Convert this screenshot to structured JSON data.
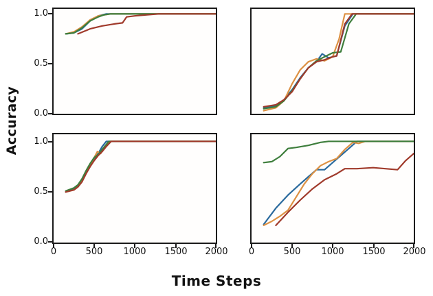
{
  "figure": {
    "ylabel": "Accuracy",
    "xlabel": "Time Steps",
    "y_ticks": [
      "1.0",
      "0.5",
      "0.0"
    ],
    "x_ticks": [
      "0",
      "500",
      "1000",
      "1500",
      "2000"
    ]
  },
  "palette": {
    "blue": "#2a6a9d",
    "orange": "#dd9143",
    "green": "#3e7e3c",
    "red": "#a03a2b",
    "spine": "#1a1a1a"
  },
  "chart_data": [
    {
      "id": "top-left",
      "type": "line",
      "xlabel": "Time Steps",
      "ylabel": "Accuracy",
      "xlim": [
        0,
        2000
      ],
      "ylim": [
        0,
        1.05
      ],
      "grid": false,
      "legend": false,
      "series": [
        {
          "name": "blue",
          "color": "#2a6a9d",
          "x": [
            150,
            250,
            350,
            450,
            550,
            650,
            800,
            2000
          ],
          "y": [
            0.8,
            0.81,
            0.85,
            0.93,
            0.98,
            1.0,
            1.0,
            1.0
          ]
        },
        {
          "name": "orange",
          "color": "#dd9143",
          "x": [
            150,
            250,
            350,
            450,
            550,
            700,
            2000
          ],
          "y": [
            0.8,
            0.82,
            0.87,
            0.94,
            0.98,
            1.0,
            1.0
          ]
        },
        {
          "name": "green",
          "color": "#3e7e3c",
          "x": [
            150,
            250,
            350,
            450,
            550,
            620,
            700,
            2000
          ],
          "y": [
            0.8,
            0.81,
            0.86,
            0.93,
            0.97,
            0.99,
            1.0,
            1.0
          ]
        },
        {
          "name": "red",
          "color": "#a03a2b",
          "x": [
            300,
            450,
            600,
            750,
            850,
            900,
            1000,
            1150,
            1300,
            2000
          ],
          "y": [
            0.8,
            0.85,
            0.88,
            0.9,
            0.91,
            0.97,
            0.98,
            0.99,
            1.0,
            1.0
          ]
        }
      ]
    },
    {
      "id": "top-right",
      "type": "line",
      "xlabel": "Time Steps",
      "ylabel": "Accuracy",
      "xlim": [
        0,
        2000
      ],
      "ylim": [
        0,
        1.05
      ],
      "grid": false,
      "legend": false,
      "series": [
        {
          "name": "blue",
          "color": "#2a6a9d",
          "x": [
            150,
            300,
            400,
            500,
            600,
            700,
            800,
            870,
            950,
            1050,
            1150,
            1250,
            2000
          ],
          "y": [
            0.06,
            0.08,
            0.14,
            0.24,
            0.36,
            0.46,
            0.52,
            0.6,
            0.56,
            0.58,
            0.88,
            1.0,
            1.0
          ]
        },
        {
          "name": "orange",
          "color": "#dd9143",
          "x": [
            150,
            300,
            400,
            500,
            600,
            700,
            800,
            900,
            1000,
            1080,
            1150,
            2000
          ],
          "y": [
            0.03,
            0.06,
            0.13,
            0.3,
            0.44,
            0.52,
            0.55,
            0.53,
            0.57,
            0.75,
            1.0,
            1.0
          ]
        },
        {
          "name": "green",
          "color": "#3e7e3c",
          "x": [
            150,
            300,
            400,
            500,
            600,
            700,
            800,
            900,
            1000,
            1100,
            1200,
            1290,
            2000
          ],
          "y": [
            0.05,
            0.07,
            0.13,
            0.23,
            0.35,
            0.46,
            0.53,
            0.57,
            0.61,
            0.62,
            0.9,
            1.0,
            1.0
          ]
        },
        {
          "name": "red",
          "color": "#a03a2b",
          "x": [
            150,
            300,
            400,
            500,
            600,
            700,
            800,
            900,
            1000,
            1050,
            1150,
            1240,
            2000
          ],
          "y": [
            0.07,
            0.09,
            0.14,
            0.22,
            0.35,
            0.46,
            0.52,
            0.54,
            0.57,
            0.58,
            0.9,
            1.0,
            1.0
          ]
        }
      ]
    },
    {
      "id": "bottom-left",
      "type": "line",
      "xlabel": "Time Steps",
      "ylabel": "Accuracy",
      "xlim": [
        0,
        2000
      ],
      "ylim": [
        0,
        1.07
      ],
      "grid": false,
      "legend": false,
      "series": [
        {
          "name": "blue",
          "color": "#2a6a9d",
          "x": [
            150,
            250,
            300,
            350,
            400,
            450,
            500,
            550,
            600,
            650,
            2000
          ],
          "y": [
            0.5,
            0.53,
            0.56,
            0.62,
            0.7,
            0.77,
            0.83,
            0.88,
            0.95,
            1.0,
            1.0
          ]
        },
        {
          "name": "orange",
          "color": "#dd9143",
          "x": [
            150,
            250,
            300,
            350,
            400,
            450,
            500,
            540,
            580,
            620,
            660,
            700,
            2000
          ],
          "y": [
            0.5,
            0.52,
            0.55,
            0.61,
            0.69,
            0.76,
            0.84,
            0.9,
            0.88,
            0.93,
            0.97,
            1.0,
            1.0
          ]
        },
        {
          "name": "green",
          "color": "#3e7e3c",
          "x": [
            150,
            250,
            300,
            350,
            400,
            450,
            500,
            550,
            600,
            680,
            2000
          ],
          "y": [
            0.51,
            0.54,
            0.57,
            0.63,
            0.71,
            0.78,
            0.84,
            0.87,
            0.92,
            1.0,
            1.0
          ]
        },
        {
          "name": "red",
          "color": "#a03a2b",
          "x": [
            150,
            250,
            300,
            350,
            400,
            450,
            500,
            550,
            600,
            650,
            710,
            2000
          ],
          "y": [
            0.5,
            0.52,
            0.55,
            0.6,
            0.68,
            0.75,
            0.81,
            0.86,
            0.9,
            0.95,
            1.0,
            1.0
          ]
        }
      ]
    },
    {
      "id": "bottom-right",
      "type": "line",
      "xlabel": "Time Steps",
      "ylabel": "Accuracy",
      "xlim": [
        0,
        2000
      ],
      "ylim": [
        0,
        1.07
      ],
      "grid": false,
      "legend": false,
      "series": [
        {
          "name": "blue",
          "color": "#2a6a9d",
          "x": [
            150,
            300,
            450,
            600,
            700,
            800,
            900,
            1000,
            1100,
            1200,
            1300,
            2000
          ],
          "y": [
            0.18,
            0.34,
            0.47,
            0.58,
            0.65,
            0.72,
            0.72,
            0.79,
            0.86,
            0.93,
            1.0,
            1.0
          ]
        },
        {
          "name": "orange",
          "color": "#dd9143",
          "x": [
            150,
            250,
            350,
            450,
            550,
            650,
            750,
            850,
            950,
            1050,
            1150,
            1250,
            1320,
            1400,
            2000
          ],
          "y": [
            0.17,
            0.21,
            0.26,
            0.32,
            0.45,
            0.58,
            0.68,
            0.76,
            0.8,
            0.83,
            0.92,
            0.99,
            0.98,
            1.0,
            1.0
          ]
        },
        {
          "name": "green",
          "color": "#3e7e3c",
          "x": [
            150,
            250,
            350,
            450,
            550,
            700,
            850,
            950,
            1100,
            2000
          ],
          "y": [
            0.79,
            0.8,
            0.85,
            0.93,
            0.94,
            0.96,
            0.99,
            1.0,
            1.0,
            1.0
          ]
        },
        {
          "name": "red",
          "color": "#a03a2b",
          "x": [
            300,
            450,
            600,
            750,
            900,
            1050,
            1150,
            1300,
            1500,
            1650,
            1800,
            1900,
            2000
          ],
          "y": [
            0.17,
            0.3,
            0.42,
            0.53,
            0.62,
            0.68,
            0.73,
            0.73,
            0.74,
            0.73,
            0.72,
            0.81,
            0.88
          ]
        }
      ]
    }
  ]
}
